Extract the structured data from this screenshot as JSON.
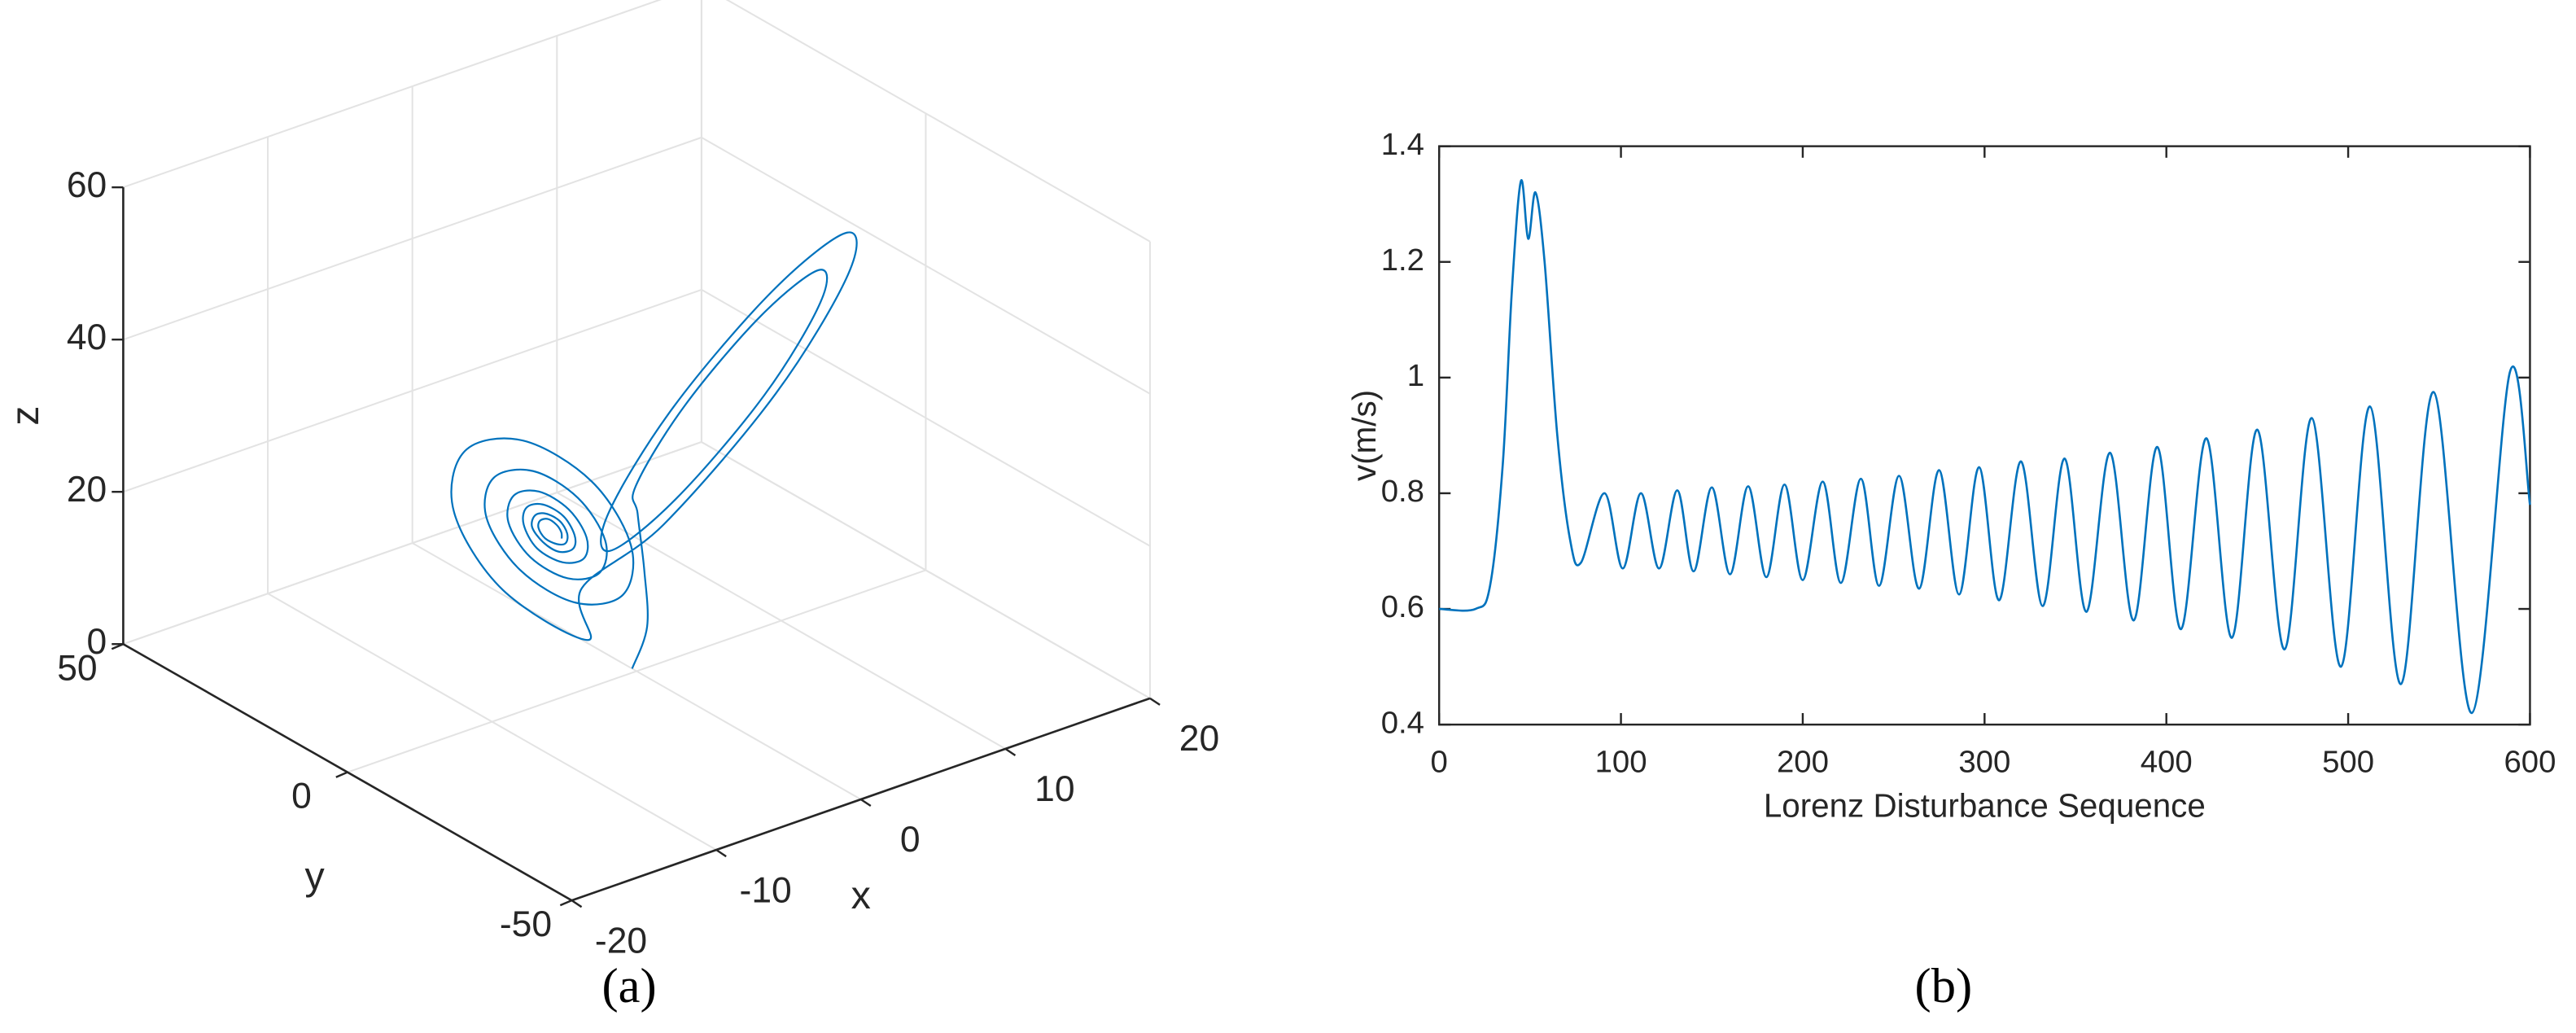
{
  "chart_data": [
    {
      "type": "line3d",
      "caption": "(a)",
      "xlabel": "x",
      "ylabel": "y",
      "zlabel": "z",
      "xlim": [
        -20,
        20
      ],
      "ylim": [
        -50,
        50
      ],
      "zlim": [
        0,
        60
      ],
      "xticks": [
        -20,
        -10,
        0,
        10,
        20
      ],
      "yticks": [
        -50,
        0,
        50
      ],
      "zticks": [
        0,
        20,
        40,
        60
      ],
      "grid": true,
      "color": "#0072bd",
      "x": [
        0,
        1.5,
        1,
        0.1,
        1.1,
        6.6,
        13.7,
        18.3,
        17.1,
        10.8,
        2.5,
        -2.7,
        -1.3,
        6.0,
        15.3,
        21.1,
        19.5,
        11.4,
        0.9,
        -5.5,
        -4.9,
        -12.8,
        -17.5,
        -16.7,
        -11.4,
        -5.0,
        -1.2,
        -1.8,
        -6.1,
        -11.3,
        -14.5,
        -14.0,
        -10.4,
        -6.2,
        -3.6,
        -4.0,
        -6.9,
        -10.4,
        -12.5,
        -12.1,
        -9.8,
        -7.0,
        -5.3,
        -5.5,
        -7.4,
        -9.8,
        -11.1,
        -10.9,
        -9.4,
        -7.5,
        -6.4,
        -6.5,
        -7.8,
        -9.3,
        -10.3,
        -10.1,
        -9.1,
        -7.8,
        -7.1,
        -7.2,
        -8.0,
        -9.1,
        -9.7,
        -9.6,
        -8.9,
        -8.1,
        -7.6,
        -7.6
      ],
      "y": [
        1,
        2.5,
        1.5,
        0.1,
        3.7,
        10.5,
        16.5,
        18.3,
        14.1,
        6.3,
        -0.7,
        -2.7,
        2.1,
        11.1,
        18.9,
        21.1,
        15.7,
        5.7,
        -3.1,
        -5.5,
        -4.9,
        -11.5,
        -15.7,
        -15.5,
        -11.4,
        -6.1,
        -2.6,
        -2.8,
        -6.1,
        -10.5,
        -13.3,
        -13.2,
        -10.4,
        -6.9,
        -4.6,
        -4.7,
        -6.9,
        -9.8,
        -11.7,
        -11.6,
        -9.8,
        -7.4,
        -5.9,
        -6.0,
        -7.4,
        -9.4,
        -10.6,
        -10.6,
        -9.4,
        -7.8,
        -6.8,
        -6.8,
        -7.8,
        -9.1,
        -9.9,
        -9.9,
        -9.1,
        -8.0,
        -7.4,
        -7.4,
        -8.0,
        -8.9,
        -9.4,
        -9.4,
        -8.9,
        -8.2,
        -7.7,
        -7.8
      ],
      "z": [
        0,
        4,
        12,
        20.6,
        22.4,
        27.0,
        32.0,
        34.4,
        32.4,
        27.0,
        21.2,
        18.5,
        20.9,
        27.0,
        33.5,
        36.5,
        33.9,
        27.0,
        19.7,
        16.4,
        9.0,
        23.0,
        37.8,
        45.2,
        41.7,
        30.3,
        18.2,
        12.2,
        15.1,
        24.3,
        34.2,
        39.1,
        36.7,
        29.2,
        21.1,
        17.2,
        19.1,
        25.2,
        31.8,
        35.0,
        33.4,
        28.4,
        23.1,
        20.5,
        21.7,
        25.8,
        30.2,
        32.3,
        31.3,
        28.0,
        24.4,
        22.7,
        23.5,
        26.2,
        29.1,
        30.5,
        29.8,
        27.6,
        25.3,
        24.1,
        24.7,
        26.5,
        28.4,
        29.3,
        28.9,
        27.4,
        25.9,
        25.1
      ]
    },
    {
      "type": "line",
      "caption": "(b)",
      "xlabel": "Lorenz Disturbance Sequence",
      "ylabel": "v(m/s)",
      "xlim": [
        0,
        600
      ],
      "ylim": [
        0.4,
        1.4
      ],
      "xticks": [
        0,
        100,
        200,
        300,
        400,
        500,
        600
      ],
      "yticks": [
        0.4,
        0.6,
        0.8,
        1,
        1.2,
        1.4
      ],
      "grid": false,
      "color": "#0072bd",
      "x": [
        0,
        20,
        28,
        35,
        40,
        45,
        49,
        53,
        58,
        65,
        72,
        78,
        91,
        101,
        111,
        121,
        131,
        140,
        150,
        160,
        170,
        180,
        190,
        200,
        211,
        221,
        232,
        242,
        253,
        264,
        275,
        286,
        297,
        308,
        320,
        332,
        344,
        356,
        369,
        382,
        395,
        408,
        422,
        436,
        450,
        465,
        480,
        496,
        512,
        529,
        547,
        568,
        589,
        600
      ],
      "values": [
        0.6,
        0.6,
        0.64,
        0.85,
        1.15,
        1.34,
        1.24,
        1.32,
        1.2,
        0.9,
        0.72,
        0.68,
        0.8,
        0.67,
        0.8,
        0.67,
        0.805,
        0.665,
        0.81,
        0.66,
        0.812,
        0.655,
        0.815,
        0.65,
        0.82,
        0.645,
        0.825,
        0.64,
        0.83,
        0.635,
        0.84,
        0.625,
        0.845,
        0.615,
        0.855,
        0.605,
        0.86,
        0.595,
        0.87,
        0.58,
        0.88,
        0.565,
        0.895,
        0.55,
        0.91,
        0.53,
        0.93,
        0.5,
        0.95,
        0.47,
        0.975,
        0.42,
        1.01,
        0.78
      ]
    }
  ]
}
